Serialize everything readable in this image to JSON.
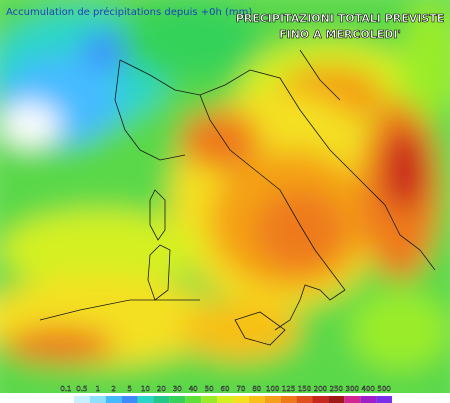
{
  "header": {
    "subtitle": "Accumulation de précipitations depuis +0h (mm)",
    "title_lines": [
      "PRECIPITAZIONI TOTALI PREVISTE",
      "FINO A MERCOLEDI'"
    ]
  },
  "legend": {
    "labels": [
      "0.1",
      "0.5",
      "1",
      "2",
      "5",
      "10",
      "20",
      "30",
      "40",
      "50",
      "60",
      "70",
      "80",
      "100",
      "125",
      "150",
      "200",
      "250",
      "300",
      "400",
      "500"
    ],
    "colors": [
      "#ffffff",
      "#c8f0ff",
      "#8ee0ff",
      "#44bbff",
      "#3c8cff",
      "#2ad6c8",
      "#22c88a",
      "#34d25a",
      "#5ee03a",
      "#9aec2a",
      "#d4f020",
      "#f4e020",
      "#f8c018",
      "#f4a018",
      "#ee7a1a",
      "#e0501e",
      "#c8281e",
      "#a01818",
      "#d02890",
      "#a020c8",
      "#7a30e8"
    ]
  }
}
